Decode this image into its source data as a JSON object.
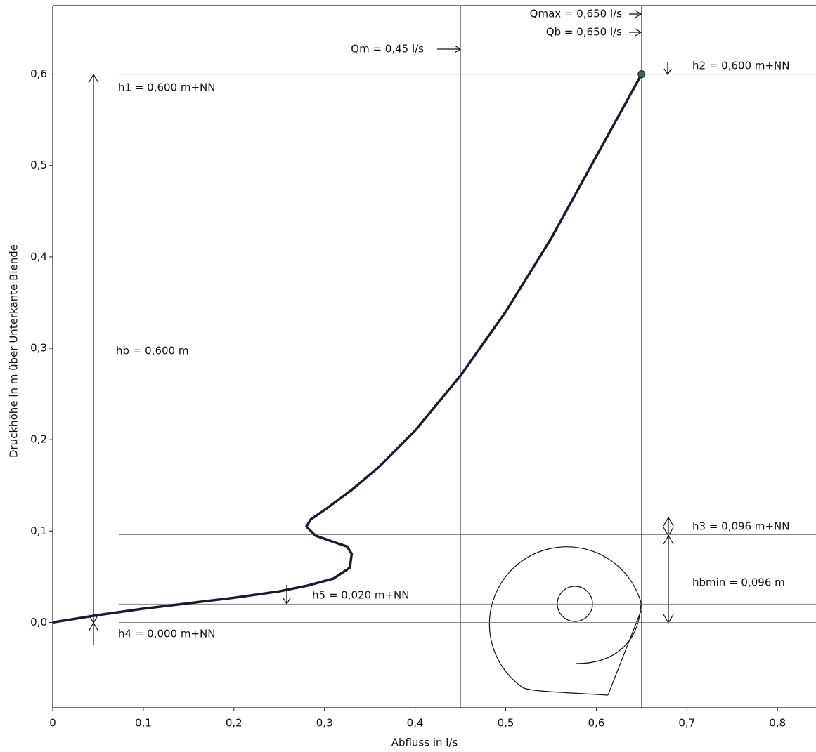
{
  "chart_data": {
    "type": "line",
    "x_label": "Abfluss in l/s",
    "y_label": "Druckhöhe in m über Unterkante Blende",
    "x": [
      0,
      0.05,
      0.1,
      0.15,
      0.2,
      0.25,
      0.28,
      0.31,
      0.328,
      0.33,
      0.325,
      0.31,
      0.29,
      0.28,
      0.285,
      0.3,
      0.33,
      0.36,
      0.4,
      0.45,
      0.5,
      0.55,
      0.6,
      0.65
    ],
    "values": [
      0,
      0.008,
      0.015,
      0.021,
      0.027,
      0.034,
      0.04,
      0.048,
      0.06,
      0.075,
      0.083,
      0.088,
      0.095,
      0.105,
      0.113,
      0.123,
      0.145,
      0.17,
      0.21,
      0.27,
      0.34,
      0.42,
      0.51,
      0.6
    ],
    "color": "#1a1a33",
    "xlim": [
      0,
      0.8425
    ],
    "ylim": [
      -0.0934,
      0.675
    ],
    "xticks": [
      0,
      {
        "value": 0.1,
        "label": "0,1"
      },
      {
        "value": 0.2,
        "label": "0,2"
      },
      {
        "value": 0.3,
        "label": "0,3"
      },
      {
        "value": 0.4,
        "label": "0,4"
      },
      {
        "value": 0.5,
        "label": "0,5"
      },
      {
        "value": 0.6,
        "label": "0,6"
      },
      {
        "value": 0.7,
        "label": "0,7"
      },
      {
        "value": 0.8,
        "label": "0,8"
      }
    ],
    "yticks": [
      {
        "value": 0,
        "label": "0,0"
      },
      {
        "value": 0.1,
        "label": "0,1"
      },
      {
        "value": 0.2,
        "label": "0,2"
      },
      {
        "value": 0.3,
        "label": "0,3"
      },
      {
        "value": 0.4,
        "label": "0,4"
      },
      {
        "value": 0.5,
        "label": "0,5"
      },
      {
        "value": 0.6,
        "label": "0,6"
      }
    ],
    "vertical_lines": [
      0.45,
      0.65
    ],
    "horizontal_lines": [
      0.6,
      0.096,
      0.02,
      0
    ],
    "marker": {
      "x": 0.65,
      "y": 0.6,
      "color": "#3d6b4a"
    },
    "annotations": [
      "Qmax = 0,650 l/s",
      "Qb = 0,650 l/s",
      "Qm = 0,45 l/s",
      "h2 = 0,600 m+NN",
      "h1 = 0,600 m+NN",
      "hb = 0,600 m",
      "h3 = 0,096 m+NN",
      "hbmin = 0,096 m",
      "h5 = 0,020 m+NN",
      "h4 = 0,000 m+NN"
    ]
  }
}
